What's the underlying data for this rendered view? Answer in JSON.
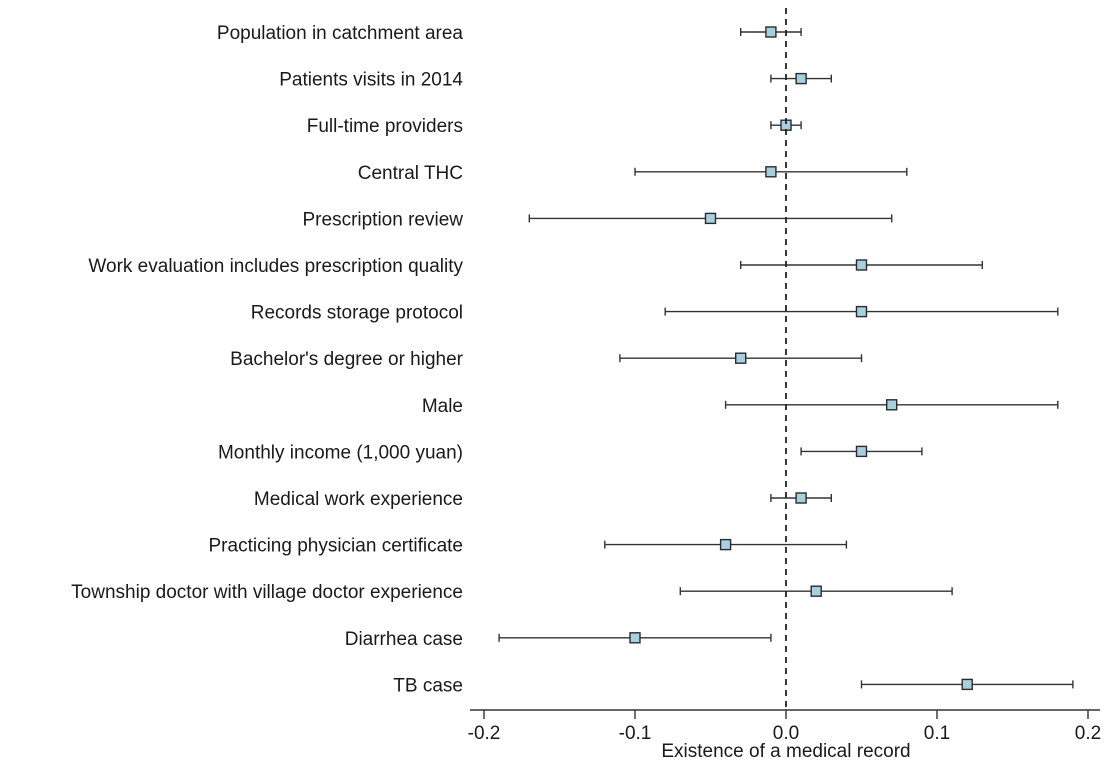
{
  "chart_data": {
    "type": "scatter",
    "subtype": "forest-plot",
    "title": "",
    "xlabel": "Existence of a medical record",
    "ylabel": "",
    "xlim": [
      -0.2,
      0.2
    ],
    "xticks": [
      -0.2,
      -0.1,
      0.0,
      0.1,
      0.2
    ],
    "xtick_labels": [
      "-0.2",
      "-0.1",
      "0.0",
      "0.1",
      "0.2"
    ],
    "reference_line": 0.0,
    "reference_line_style": "dashed",
    "grid": false,
    "marker": "square",
    "marker_color": "#a8cfe0",
    "rows": [
      {
        "label": "Population in catchment area",
        "estimate": -0.01,
        "lower": -0.03,
        "upper": 0.01
      },
      {
        "label": "Patients visits in 2014",
        "estimate": 0.01,
        "lower": -0.01,
        "upper": 0.03
      },
      {
        "label": "Full-time providers",
        "estimate": 0.0,
        "lower": -0.01,
        "upper": 0.01
      },
      {
        "label": "Central THC",
        "estimate": -0.01,
        "lower": -0.1,
        "upper": 0.08
      },
      {
        "label": "Prescription review",
        "estimate": -0.05,
        "lower": -0.17,
        "upper": 0.07
      },
      {
        "label": "Work evaluation includes prescription quality",
        "estimate": 0.05,
        "lower": -0.03,
        "upper": 0.13
      },
      {
        "label": "Records storage protocol",
        "estimate": 0.05,
        "lower": -0.08,
        "upper": 0.18
      },
      {
        "label": "Bachelor's degree or higher",
        "estimate": -0.03,
        "lower": -0.11,
        "upper": 0.05
      },
      {
        "label": "Male",
        "estimate": 0.07,
        "lower": -0.04,
        "upper": 0.18
      },
      {
        "label": "Monthly income (1,000 yuan)",
        "estimate": 0.05,
        "lower": 0.01,
        "upper": 0.09
      },
      {
        "label": "Medical work experience",
        "estimate": 0.01,
        "lower": -0.01,
        "upper": 0.03
      },
      {
        "label": "Practicing physician certificate",
        "estimate": -0.04,
        "lower": -0.12,
        "upper": 0.04
      },
      {
        "label": "Township doctor with village doctor experience",
        "estimate": 0.02,
        "lower": -0.07,
        "upper": 0.11
      },
      {
        "label": "Diarrhea case",
        "estimate": -0.1,
        "lower": -0.19,
        "upper": -0.01
      },
      {
        "label": "TB case",
        "estimate": 0.12,
        "lower": 0.05,
        "upper": 0.19
      }
    ]
  }
}
